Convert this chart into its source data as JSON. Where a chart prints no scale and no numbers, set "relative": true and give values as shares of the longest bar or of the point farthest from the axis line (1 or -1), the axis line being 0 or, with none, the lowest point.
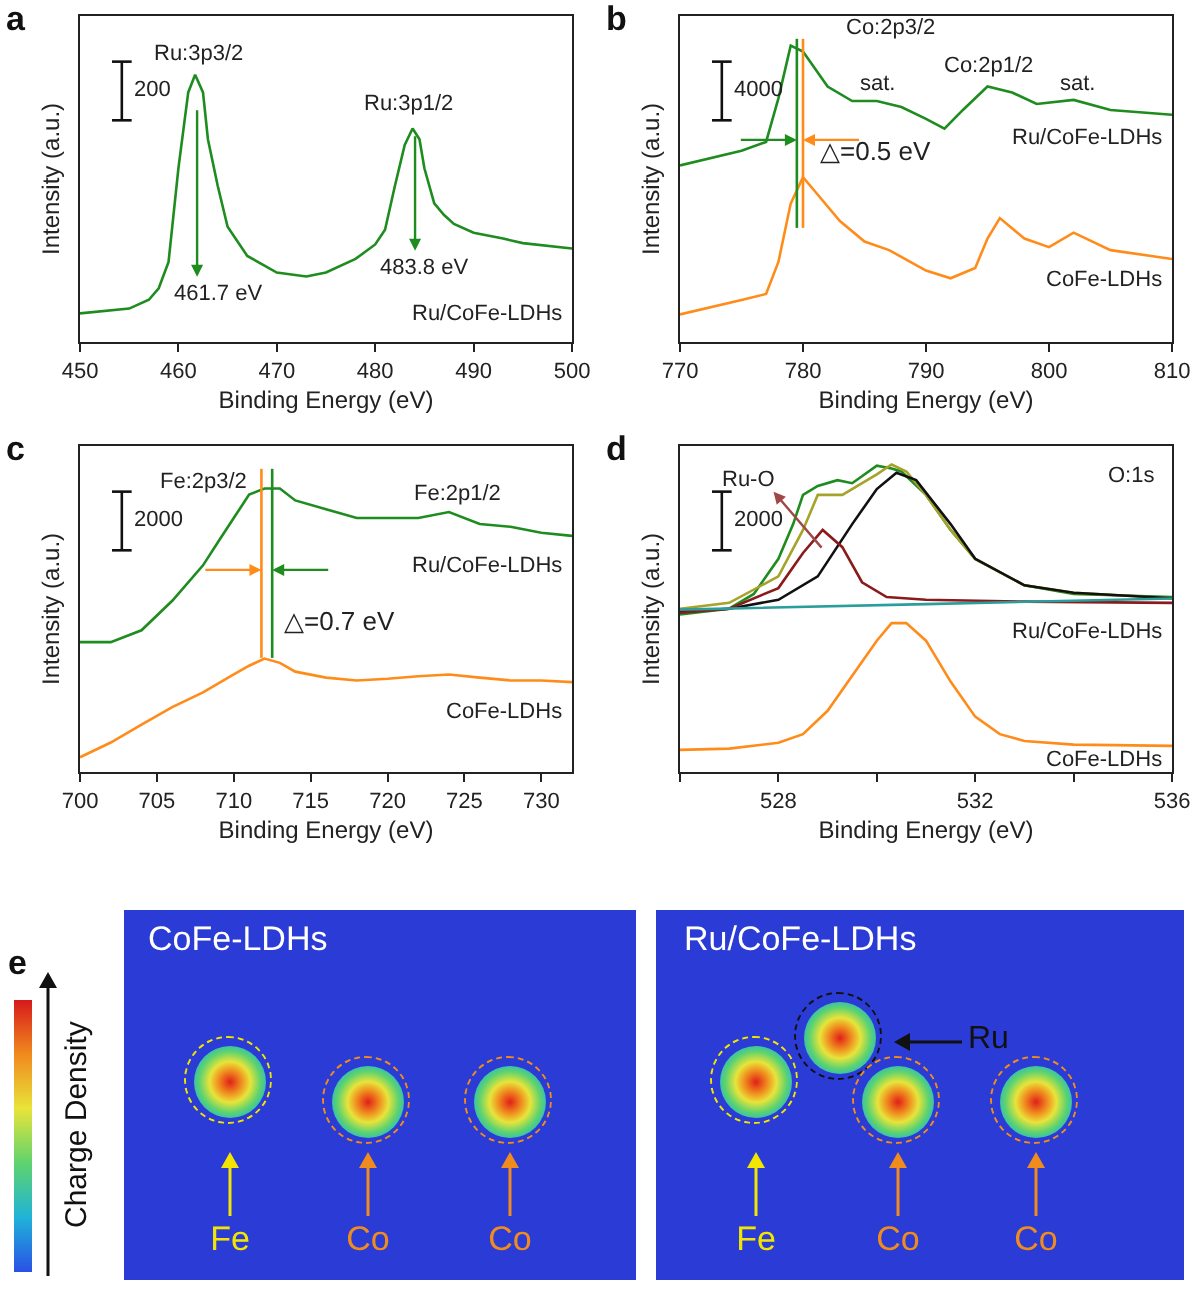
{
  "chart_data": [
    {
      "type": "line",
      "title": "a",
      "xlabel": "Binding Energy (eV)",
      "ylabel": "Intensity (a.u.)",
      "relative": true,
      "xlim": [
        450,
        500
      ],
      "xticks": [
        450,
        460,
        470,
        480,
        490,
        500
      ],
      "series": [
        {
          "name": "Ru/CoFe-LDHs",
          "color": "#1e8c1e",
          "x": [
            450,
            455,
            457,
            458,
            459,
            460,
            461,
            461.7,
            462.5,
            463,
            464,
            465,
            467,
            470,
            473,
            475,
            478,
            480,
            481,
            482,
            483,
            483.8,
            484.5,
            485,
            486,
            487,
            488,
            490,
            493,
            495,
            500
          ],
          "values": [
            0.107,
            0.125,
            0.158,
            0.201,
            0.3,
            0.65,
            0.934,
            1,
            0.934,
            0.759,
            0.584,
            0.431,
            0.322,
            0.26,
            0.245,
            0.26,
            0.311,
            0.365,
            0.42,
            0.584,
            0.737,
            0.799,
            0.759,
            0.65,
            0.519,
            0.475,
            0.442,
            0.409,
            0.387,
            0.37,
            0.35
          ]
        }
      ],
      "annotations": [
        "200",
        "Ru:3p3/2",
        "Ru:3p1/2",
        "461.7 eV",
        "483.8 eV"
      ]
    },
    {
      "type": "line",
      "title": "b",
      "xlabel": "Binding Energy (eV)",
      "ylabel": "Intensity (a.u.)",
      "relative": true,
      "xlim": [
        770,
        810
      ],
      "xticks": [
        770,
        780,
        790,
        800,
        810
      ],
      "series": [
        {
          "name": "Ru/CoFe-LDHs",
          "color": "#1e8c1e",
          "x": [
            770,
            775,
            777,
            778,
            779,
            780,
            782,
            784,
            786,
            788,
            790,
            791.5,
            793,
            795,
            797,
            799,
            802,
            805,
            810
          ],
          "values": [
            0.596,
            0.645,
            0.675,
            0.822,
            1,
            0.98,
            0.862,
            0.813,
            0.813,
            0.793,
            0.753,
            0.72,
            0.783,
            0.862,
            0.842,
            0.803,
            0.817,
            0.783,
            0.767
          ]
        },
        {
          "name": "CoFe-LDHs",
          "color": "#ff8c1a",
          "x": [
            770,
            775,
            777,
            778,
            779,
            780,
            781,
            783,
            785,
            787,
            790,
            792,
            794,
            795,
            796,
            798,
            800,
            802,
            805,
            810
          ],
          "values": [
            0.093,
            0.142,
            0.162,
            0.27,
            0.467,
            0.556,
            0.507,
            0.408,
            0.339,
            0.31,
            0.241,
            0.215,
            0.25,
            0.349,
            0.418,
            0.349,
            0.32,
            0.369,
            0.31,
            0.28
          ]
        }
      ],
      "ref_lines": [
        {
          "axis": "x",
          "value": 779.5,
          "color": "#1e8c1e"
        },
        {
          "axis": "x",
          "value": 780,
          "color": "#ff8c1a"
        }
      ],
      "annotations": [
        "4000",
        "Co:2p3/2",
        "sat.",
        "Co:2p1/2",
        "sat.",
        "△=0.5 eV"
      ]
    },
    {
      "type": "line",
      "title": "c",
      "xlabel": "Binding Energy (eV)",
      "ylabel": "Intensity (a.u.)",
      "relative": true,
      "xlim": [
        700,
        732
      ],
      "xticks": [
        700,
        705,
        710,
        715,
        720,
        725,
        730
      ],
      "series": [
        {
          "name": "Ru/CoFe-LDHs",
          "color": "#1e8c1e",
          "x": [
            700,
            702,
            704,
            706,
            708,
            709,
            710,
            711,
            712,
            713,
            714,
            716,
            718,
            720,
            722,
            724,
            726,
            728,
            730,
            732
          ],
          "values": [
            0.458,
            0.458,
            0.5,
            0.604,
            0.729,
            0.813,
            0.896,
            0.979,
            1,
            1,
            0.958,
            0.927,
            0.896,
            0.896,
            0.896,
            0.917,
            0.875,
            0.865,
            0.844,
            0.833
          ]
        },
        {
          "name": "CoFe-LDHs",
          "color": "#ff8c1a",
          "x": [
            700,
            702,
            704,
            706,
            708,
            710,
            711,
            712,
            713,
            714,
            716,
            718,
            720,
            722,
            724,
            726,
            728,
            730,
            732
          ],
          "values": [
            0.052,
            0.104,
            0.167,
            0.229,
            0.281,
            0.344,
            0.375,
            0.4,
            0.385,
            0.354,
            0.333,
            0.323,
            0.329,
            0.338,
            0.344,
            0.333,
            0.323,
            0.323,
            0.317
          ]
        }
      ],
      "ref_lines": [
        {
          "axis": "x",
          "value": 711.8,
          "color": "#ff8c1a"
        },
        {
          "axis": "x",
          "value": 712.5,
          "color": "#1e8c1e"
        }
      ],
      "annotations": [
        "2000",
        "Fe:2p3/2",
        "Fe:2p1/2",
        "△=0.7 eV"
      ]
    },
    {
      "type": "line",
      "title": "d",
      "xlabel": "Binding Energy (eV)",
      "ylabel": "Intensity (a.u.)",
      "relative": true,
      "xlim": [
        526,
        536
      ],
      "xticks": [
        {
          "value": 526,
          "label": null
        },
        528,
        {
          "value": 530,
          "label": null
        },
        532,
        {
          "value": 534,
          "label": null
        },
        536
      ],
      "series": [
        {
          "name": "Ru/CoFe-LDHs",
          "color": "#1e8c1e",
          "x": [
            526,
            527,
            527.5,
            528,
            528.3,
            528.5,
            528.8,
            529.2,
            529.5,
            530,
            530.3,
            530.5,
            531,
            531.5,
            532,
            533,
            534,
            536
          ],
          "values": [
            0.512,
            0.531,
            0.579,
            0.693,
            0.806,
            0.901,
            0.93,
            0.949,
            0.939,
            0.996,
            0.987,
            0.977,
            0.901,
            0.787,
            0.693,
            0.607,
            0.579,
            0.569
          ]
        },
        {
          "color": "#a5a32a",
          "x": [
            526,
            527,
            528,
            528.5,
            528.8,
            529.3,
            530,
            530.3,
            530.6,
            531,
            531.5,
            532,
            533,
            534,
            536
          ],
          "values": [
            0.531,
            0.55,
            0.636,
            0.787,
            0.901,
            0.901,
            0.968,
            1,
            0.977,
            0.901,
            0.787,
            0.693,
            0.607,
            0.583,
            0.565
          ]
        },
        {
          "color": "#111111",
          "x": [
            526,
            527,
            528,
            528.8,
            529.5,
            530,
            530.4,
            530.8,
            531.5,
            532,
            533,
            534,
            536
          ],
          "values": [
            0.522,
            0.531,
            0.56,
            0.636,
            0.806,
            0.92,
            0.973,
            0.949,
            0.806,
            0.693,
            0.607,
            0.583,
            0.565
          ]
        },
        {
          "color": "#8b1a1a",
          "x": [
            526,
            527,
            528,
            528.5,
            528.9,
            529.3,
            529.7,
            530.2,
            531,
            533,
            536
          ],
          "values": [
            0.518,
            0.531,
            0.598,
            0.712,
            0.787,
            0.731,
            0.617,
            0.569,
            0.56,
            0.554,
            0.55
          ]
        },
        {
          "color": "#2a9d9d",
          "x": [
            526,
            531,
            536
          ],
          "values": [
            0.528,
            0.546,
            0.564
          ]
        },
        {
          "name": "CoFe-LDHs",
          "color": "#ff8c1a",
          "x": [
            526,
            527,
            528,
            528.5,
            529,
            529.5,
            530,
            530.3,
            530.6,
            531,
            531.5,
            532,
            532.5,
            533,
            534,
            536
          ],
          "values": [
            0.072,
            0.076,
            0.095,
            0.123,
            0.199,
            0.313,
            0.427,
            0.484,
            0.484,
            0.427,
            0.294,
            0.18,
            0.123,
            0.101,
            0.089,
            0.085
          ]
        }
      ],
      "annotations": [
        "2000",
        "O:1s",
        "Ru-O"
      ]
    },
    {
      "type": "other",
      "title": "e",
      "ylabel": "Charge Density",
      "annotations": [
        "CoFe-LDHs",
        "Ru/CoFe-LDHs",
        "Ru",
        "Fe",
        "Co",
        "Co",
        "Fe",
        "Co",
        "Co"
      ]
    }
  ]
}
